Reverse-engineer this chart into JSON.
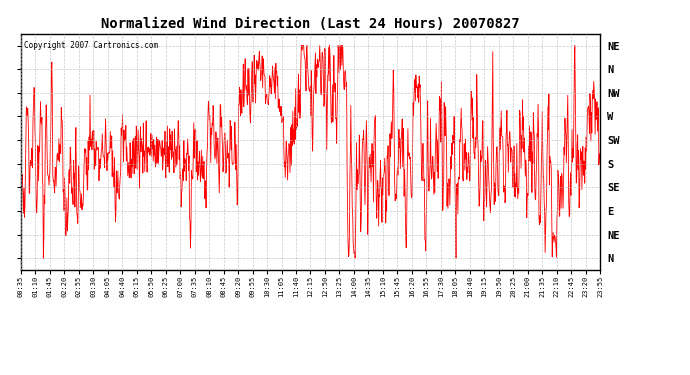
{
  "title": "Normalized Wind Direction (Last 24 Hours) 20070827",
  "copyright": "Copyright 2007 Cartronics.com",
  "line_color": "#ff0000",
  "background_color": "#ffffff",
  "grid_color": "#bbbbbb",
  "ytick_labels": [
    "NE",
    "N",
    "NW",
    "W",
    "SW",
    "S",
    "SE",
    "E",
    "NE",
    "N"
  ],
  "ytick_values": [
    9,
    8,
    7,
    6,
    5,
    4,
    3,
    2,
    1,
    0
  ],
  "ylim": [
    -0.5,
    9.5
  ],
  "xtick_labels": [
    "00:35",
    "01:10",
    "01:45",
    "02:20",
    "02:55",
    "03:30",
    "04:05",
    "04:40",
    "05:15",
    "05:50",
    "06:25",
    "07:00",
    "07:35",
    "08:10",
    "08:45",
    "09:20",
    "09:55",
    "10:30",
    "11:05",
    "11:40",
    "12:15",
    "12:50",
    "13:25",
    "14:00",
    "14:35",
    "15:10",
    "15:45",
    "16:20",
    "16:55",
    "17:30",
    "18:05",
    "18:40",
    "19:15",
    "19:50",
    "20:25",
    "21:00",
    "21:35",
    "22:10",
    "22:45",
    "23:20",
    "23:55"
  ],
  "n_ticks": 41
}
